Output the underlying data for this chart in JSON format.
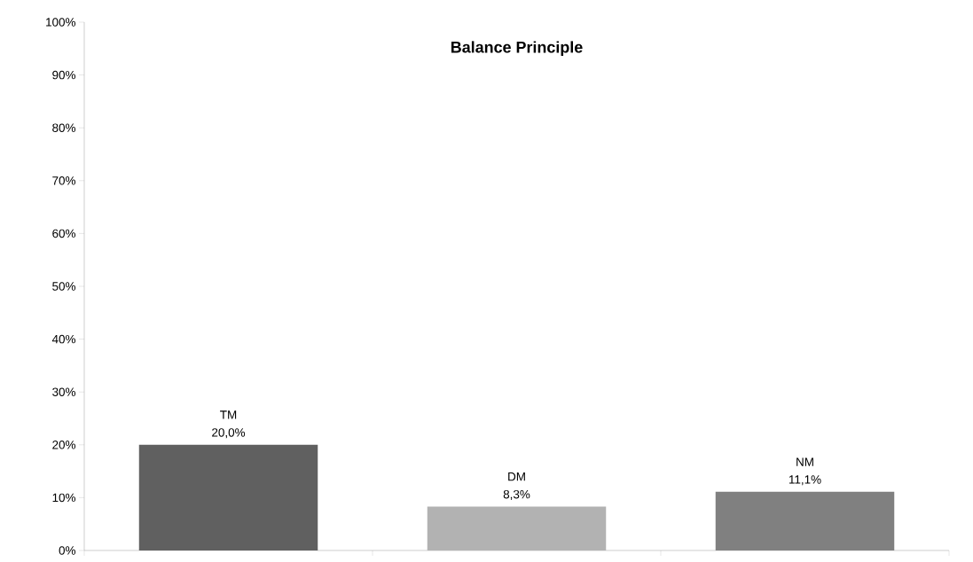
{
  "chart_data": {
    "type": "bar",
    "title": "Balance Principle",
    "categories": [
      "TM",
      "DM",
      "NM"
    ],
    "values": [
      20.0,
      8.3,
      11.1
    ],
    "colors": [
      "#606060",
      "#b2b2b2",
      "#808080"
    ],
    "value_labels": [
      "20,0%",
      "8,3%",
      "11,1%"
    ],
    "ylim": [
      0,
      100
    ],
    "yticks": [
      {
        "value": 0,
        "label": "0%"
      },
      {
        "value": 10,
        "label": "10%"
      },
      {
        "value": 20,
        "label": "20%"
      },
      {
        "value": 30,
        "label": "30%"
      },
      {
        "value": 40,
        "label": "40%"
      },
      {
        "value": 50,
        "label": "50%"
      },
      {
        "value": 60,
        "label": "60%"
      },
      {
        "value": 70,
        "label": "70%"
      },
      {
        "value": 80,
        "label": "80%"
      },
      {
        "value": 90,
        "label": "90%"
      },
      {
        "value": 100,
        "label": "100%"
      }
    ],
    "tick_labels": "y",
    "grid": false
  }
}
